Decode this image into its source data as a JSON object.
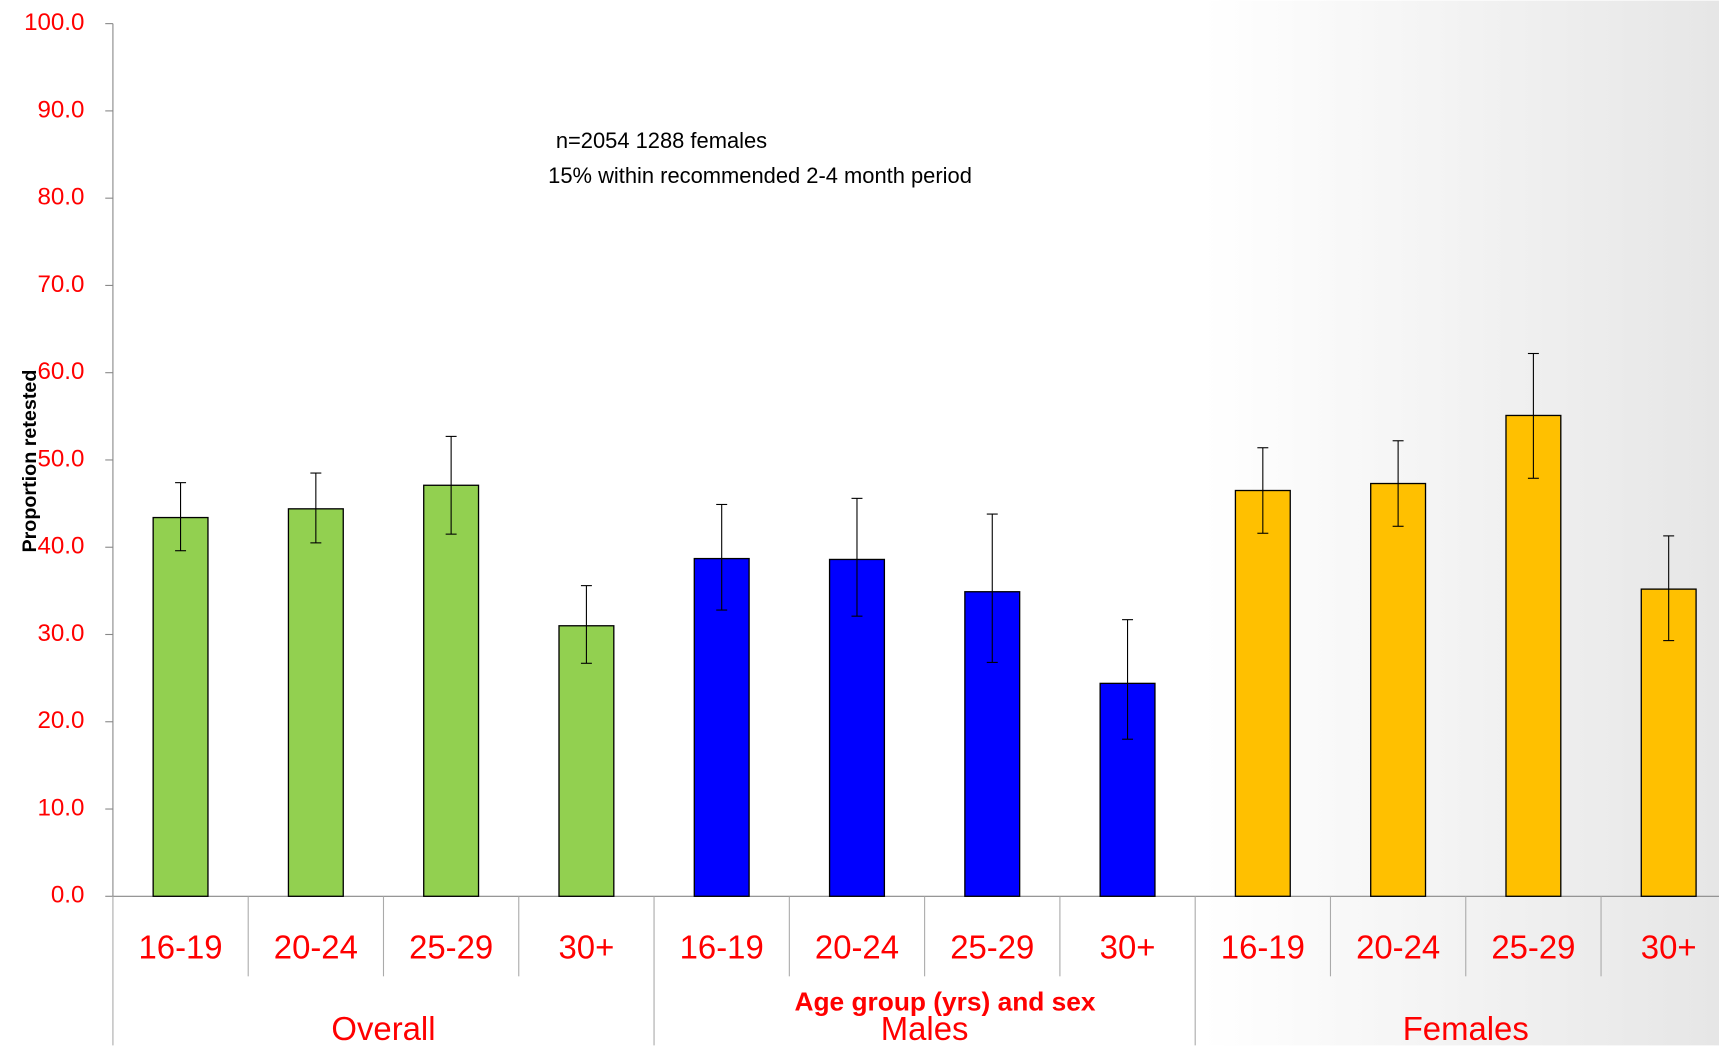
{
  "chart_data": {
    "type": "bar",
    "annotations": [
      "n=2054 1288 females",
      "15% within recommended 2-4 month period"
    ],
    "y_label": "Proportion retested",
    "x_label": "Age group (yrs) and sex",
    "categories": [
      "16-19",
      "20-24",
      "25-29",
      "30+"
    ],
    "series": [
      {
        "name": "Overall",
        "color": "#92d050",
        "values": [
          43.4,
          44.4,
          47.1,
          31.0
        ],
        "ci_lower": [
          39.6,
          40.5,
          41.5,
          26.7
        ],
        "ci_upper": [
          47.4,
          48.5,
          52.7,
          35.6
        ]
      },
      {
        "name": "Males",
        "color": "#0000ff",
        "values": [
          38.7,
          38.6,
          34.9,
          24.4
        ],
        "ci_lower": [
          32.8,
          32.1,
          26.8,
          18.0
        ],
        "ci_upper": [
          44.9,
          45.6,
          43.8,
          31.7
        ]
      },
      {
        "name": "Females",
        "color": "#ffc000",
        "values": [
          46.5,
          47.3,
          55.1,
          35.2
        ],
        "ci_lower": [
          41.6,
          42.4,
          47.9,
          29.3
        ],
        "ci_upper": [
          51.4,
          52.2,
          62.2,
          41.3
        ]
      }
    ],
    "ylim": [
      0,
      100
    ],
    "yticks": [
      {
        "value": 0,
        "label": "0.0"
      },
      {
        "value": 10,
        "label": "10.0"
      },
      {
        "value": 20,
        "label": "20.0"
      },
      {
        "value": 30,
        "label": "30.0"
      },
      {
        "value": 40,
        "label": "40.0"
      },
      {
        "value": 50,
        "label": "50.0"
      },
      {
        "value": 60,
        "label": "60.0"
      },
      {
        "value": 70,
        "label": "70.0"
      },
      {
        "value": 80,
        "label": "80.0"
      },
      {
        "value": 90,
        "label": "90.0"
      },
      {
        "value": 100,
        "label": "100.0"
      }
    ]
  }
}
